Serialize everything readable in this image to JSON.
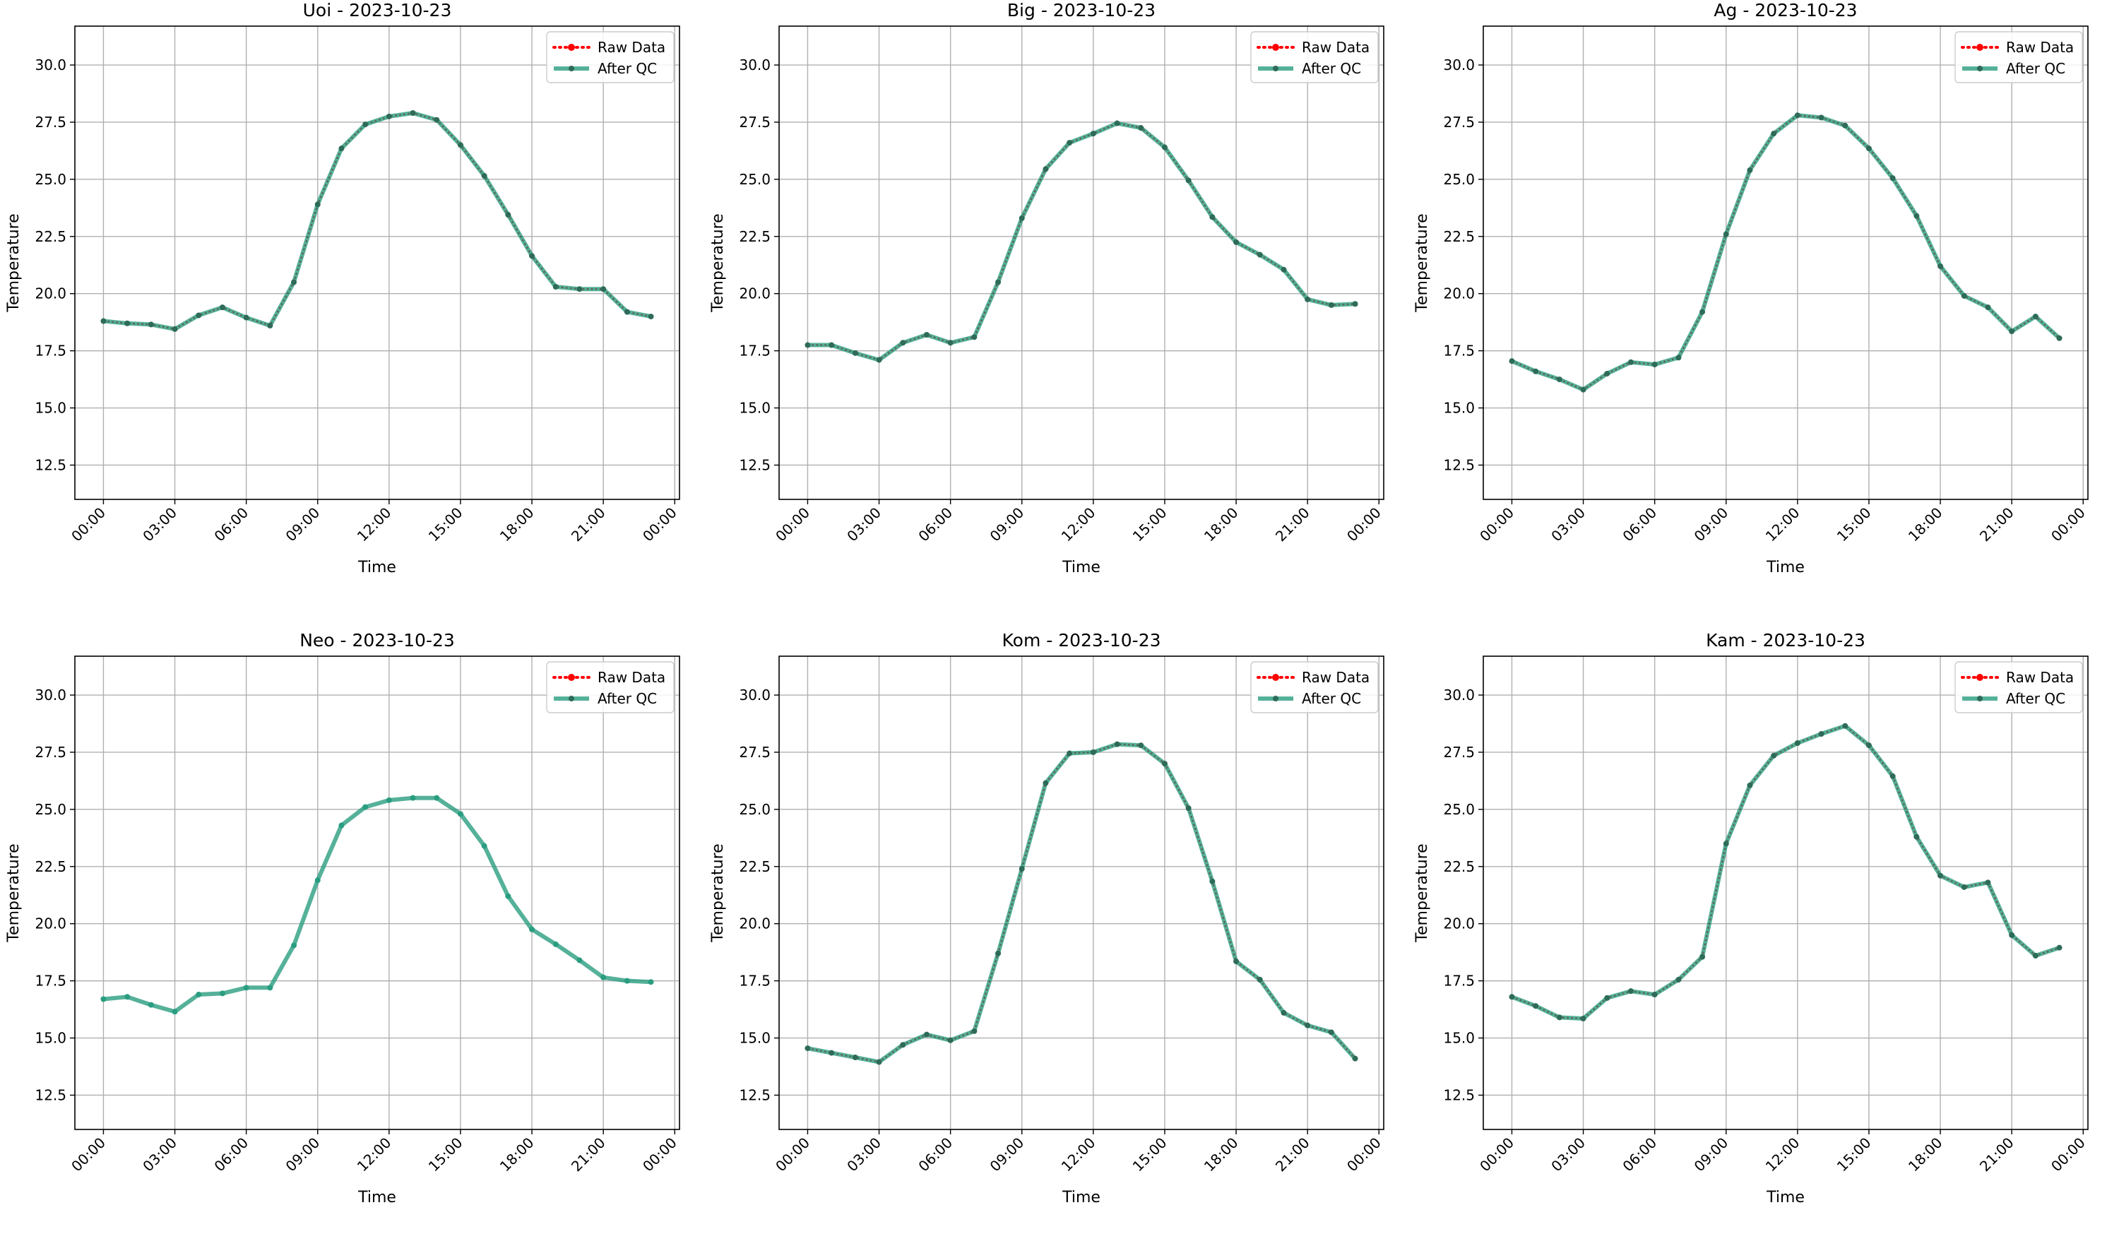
{
  "legend": {
    "raw_label": "Raw Data",
    "qc_label": "After QC"
  },
  "colors": {
    "raw": "#ff0000",
    "qc": "#2a9d80",
    "marker": "#2e6b58",
    "grid": "#b0b0b0",
    "axes": "#000000"
  },
  "chart_data": [
    {
      "type": "line",
      "title": "Uoi - 2023-10-23",
      "xlabel": "Time",
      "ylabel": "Temperature",
      "xlim": [
        "2023-10-22 22:48",
        "2023-10-24 00:12"
      ],
      "ylim": [
        11.0,
        31.7
      ],
      "x_ticks": [
        "00:00",
        "03:00",
        "06:00",
        "09:00",
        "12:00",
        "15:00",
        "18:00",
        "21:00",
        "00:00"
      ],
      "y_ticks": [
        "12.5",
        "15.0",
        "17.5",
        "20.0",
        "22.5",
        "25.0",
        "27.5",
        "30.0"
      ],
      "grid": true,
      "legend_position": "top-right",
      "x": [
        "00:00",
        "01:00",
        "02:00",
        "03:00",
        "04:00",
        "05:00",
        "06:00",
        "07:00",
        "08:00",
        "09:00",
        "10:00",
        "11:00",
        "12:00",
        "13:00",
        "14:00",
        "15:00",
        "16:00",
        "17:00",
        "18:00",
        "19:00",
        "20:00",
        "21:00",
        "22:00",
        "23:00"
      ],
      "series": [
        {
          "name": "Raw Data",
          "values": [
            18.8,
            18.7,
            18.65,
            18.45,
            19.05,
            19.4,
            18.95,
            18.6,
            20.5,
            23.9,
            26.35,
            27.4,
            27.75,
            27.9,
            27.6,
            26.5,
            25.15,
            23.45,
            21.65,
            20.3,
            20.2,
            20.2,
            19.2,
            19.0
          ]
        },
        {
          "name": "After QC",
          "values": [
            18.8,
            18.7,
            18.65,
            18.45,
            19.05,
            19.4,
            18.95,
            18.6,
            20.5,
            23.9,
            26.35,
            27.4,
            27.75,
            27.9,
            27.6,
            26.5,
            25.15,
            23.45,
            21.65,
            20.3,
            20.2,
            20.2,
            19.2,
            19.0
          ]
        }
      ]
    },
    {
      "type": "line",
      "title": "Big - 2023-10-23",
      "xlabel": "Time",
      "ylabel": "Temperature",
      "xlim": [
        "2023-10-22 22:48",
        "2023-10-24 00:12"
      ],
      "ylim": [
        11.0,
        31.7
      ],
      "x_ticks": [
        "00:00",
        "03:00",
        "06:00",
        "09:00",
        "12:00",
        "15:00",
        "18:00",
        "21:00",
        "00:00"
      ],
      "y_ticks": [
        "12.5",
        "15.0",
        "17.5",
        "20.0",
        "22.5",
        "25.0",
        "27.5",
        "30.0"
      ],
      "grid": true,
      "legend_position": "top-right",
      "x": [
        "00:00",
        "01:00",
        "02:00",
        "03:00",
        "04:00",
        "05:00",
        "06:00",
        "07:00",
        "08:00",
        "09:00",
        "10:00",
        "11:00",
        "12:00",
        "13:00",
        "14:00",
        "15:00",
        "16:00",
        "17:00",
        "18:00",
        "19:00",
        "20:00",
        "21:00",
        "22:00",
        "23:00"
      ],
      "series": [
        {
          "name": "Raw Data",
          "values": [
            17.75,
            17.75,
            17.4,
            17.1,
            17.85,
            18.2,
            17.85,
            18.1,
            20.5,
            23.3,
            25.45,
            26.6,
            27.0,
            27.45,
            27.25,
            26.4,
            24.95,
            23.35,
            22.25,
            21.7,
            21.05,
            19.75,
            19.5,
            19.55
          ]
        },
        {
          "name": "After QC",
          "values": [
            17.75,
            17.75,
            17.4,
            17.1,
            17.85,
            18.2,
            17.85,
            18.1,
            20.5,
            23.3,
            25.45,
            26.6,
            27.0,
            27.45,
            27.25,
            26.4,
            24.95,
            23.35,
            22.25,
            21.7,
            21.05,
            19.75,
            19.5,
            19.55
          ]
        }
      ]
    },
    {
      "type": "line",
      "title": "Ag - 2023-10-23",
      "xlabel": "Time",
      "ylabel": "Temperature",
      "xlim": [
        "2023-10-22 22:48",
        "2023-10-24 00:12"
      ],
      "ylim": [
        11.0,
        31.7
      ],
      "x_ticks": [
        "00:00",
        "03:00",
        "06:00",
        "09:00",
        "12:00",
        "15:00",
        "18:00",
        "21:00",
        "00:00"
      ],
      "y_ticks": [
        "12.5",
        "15.0",
        "17.5",
        "20.0",
        "22.5",
        "25.0",
        "27.5",
        "30.0"
      ],
      "grid": true,
      "legend_position": "top-right",
      "x": [
        "00:00",
        "01:00",
        "02:00",
        "03:00",
        "04:00",
        "05:00",
        "06:00",
        "07:00",
        "08:00",
        "09:00",
        "10:00",
        "11:00",
        "12:00",
        "13:00",
        "14:00",
        "15:00",
        "16:00",
        "17:00",
        "18:00",
        "19:00",
        "20:00",
        "21:00",
        "22:00",
        "23:00"
      ],
      "series": [
        {
          "name": "Raw Data",
          "values": [
            17.05,
            16.6,
            16.25,
            15.8,
            16.5,
            17.0,
            16.9,
            17.2,
            19.2,
            22.6,
            25.4,
            27.0,
            27.8,
            27.7,
            27.35,
            26.35,
            25.05,
            23.4,
            21.2,
            19.9,
            19.4,
            18.35,
            19.0,
            18.05
          ]
        },
        {
          "name": "After QC",
          "values": [
            17.05,
            16.6,
            16.25,
            15.8,
            16.5,
            17.0,
            16.9,
            17.2,
            19.2,
            22.6,
            25.4,
            27.0,
            27.8,
            27.7,
            27.35,
            26.35,
            25.05,
            23.4,
            21.2,
            19.9,
            19.4,
            18.35,
            19.0,
            18.05
          ]
        }
      ]
    },
    {
      "type": "line",
      "title": "Neo - 2023-10-23",
      "xlabel": "Time",
      "ylabel": "Temperature",
      "xlim": [
        "2023-10-22 22:48",
        "2023-10-24 00:12"
      ],
      "ylim": [
        11.0,
        31.7
      ],
      "x_ticks": [
        "00:00",
        "03:00",
        "06:00",
        "09:00",
        "12:00",
        "15:00",
        "18:00",
        "21:00",
        "00:00"
      ],
      "y_ticks": [
        "12.5",
        "15.0",
        "17.5",
        "20.0",
        "22.5",
        "25.0",
        "27.5",
        "30.0"
      ],
      "grid": true,
      "legend_position": "top-right",
      "x": [
        "00:00",
        "01:00",
        "02:00",
        "03:00",
        "04:00",
        "05:00",
        "06:00",
        "07:00",
        "08:00",
        "09:00",
        "10:00",
        "11:00",
        "12:00",
        "13:00",
        "14:00",
        "15:00",
        "16:00",
        "17:00",
        "18:00",
        "19:00",
        "20:00",
        "21:00",
        "22:00",
        "23:00"
      ],
      "series": [
        {
          "name": "Raw Data",
          "values": [
            16.7,
            16.8,
            16.45,
            16.15,
            16.9,
            16.95,
            17.2,
            17.2,
            19.05,
            21.9,
            24.3,
            25.1,
            25.4,
            25.5,
            25.5,
            24.8,
            23.4,
            21.2,
            19.75,
            19.1,
            18.4,
            17.65,
            17.5,
            17.45
          ]
        },
        {
          "name": "After QC",
          "values": [
            16.7,
            16.8,
            16.45,
            16.15,
            16.9,
            16.95,
            17.2,
            17.2,
            19.05,
            21.9,
            24.3,
            25.1,
            25.4,
            25.5,
            25.5,
            24.8,
            23.4,
            21.2,
            19.75,
            19.1,
            18.4,
            17.65,
            17.5,
            17.45
          ]
        }
      ]
    },
    {
      "type": "line",
      "title": "Kom - 2023-10-23",
      "xlabel": "Time",
      "ylabel": "Temperature",
      "xlim": [
        "2023-10-22 22:48",
        "2023-10-24 00:12"
      ],
      "ylim": [
        11.0,
        31.7
      ],
      "x_ticks": [
        "00:00",
        "03:00",
        "06:00",
        "09:00",
        "12:00",
        "15:00",
        "18:00",
        "21:00",
        "00:00"
      ],
      "y_ticks": [
        "12.5",
        "15.0",
        "17.5",
        "20.0",
        "22.5",
        "25.0",
        "27.5",
        "30.0"
      ],
      "grid": true,
      "legend_position": "top-right",
      "x": [
        "00:00",
        "01:00",
        "02:00",
        "03:00",
        "04:00",
        "05:00",
        "06:00",
        "07:00",
        "08:00",
        "09:00",
        "10:00",
        "11:00",
        "12:00",
        "13:00",
        "14:00",
        "15:00",
        "16:00",
        "17:00",
        "18:00",
        "19:00",
        "20:00",
        "21:00",
        "22:00",
        "23:00"
      ],
      "series": [
        {
          "name": "Raw Data",
          "values": [
            14.55,
            14.35,
            14.15,
            13.95,
            14.7,
            15.15,
            14.9,
            15.3,
            18.7,
            22.4,
            26.15,
            27.45,
            27.5,
            27.85,
            27.8,
            27.0,
            25.05,
            21.85,
            18.35,
            17.55,
            16.1,
            15.55,
            15.25,
            14.1
          ]
        },
        {
          "name": "After QC",
          "values": [
            14.55,
            14.35,
            14.15,
            13.95,
            14.7,
            15.15,
            14.9,
            15.3,
            18.7,
            22.4,
            26.15,
            27.45,
            27.5,
            27.85,
            27.8,
            27.0,
            25.05,
            21.85,
            18.35,
            17.55,
            16.1,
            15.55,
            15.25,
            14.1
          ]
        }
      ]
    },
    {
      "type": "line",
      "title": "Kam - 2023-10-23",
      "xlabel": "Time",
      "ylabel": "Temperature",
      "xlim": [
        "2023-10-22 22:48",
        "2023-10-24 00:12"
      ],
      "ylim": [
        11.0,
        31.7
      ],
      "x_ticks": [
        "00:00",
        "03:00",
        "06:00",
        "09:00",
        "12:00",
        "15:00",
        "18:00",
        "21:00",
        "00:00"
      ],
      "y_ticks": [
        "12.5",
        "15.0",
        "17.5",
        "20.0",
        "22.5",
        "25.0",
        "27.5",
        "30.0"
      ],
      "grid": true,
      "legend_position": "top-right",
      "x": [
        "00:00",
        "01:00",
        "02:00",
        "03:00",
        "04:00",
        "05:00",
        "06:00",
        "07:00",
        "08:00",
        "09:00",
        "10:00",
        "11:00",
        "12:00",
        "13:00",
        "14:00",
        "15:00",
        "16:00",
        "17:00",
        "18:00",
        "19:00",
        "20:00",
        "21:00",
        "22:00",
        "23:00"
      ],
      "series": [
        {
          "name": "Raw Data",
          "values": [
            16.8,
            16.4,
            15.9,
            15.85,
            16.75,
            17.05,
            16.9,
            17.55,
            18.55,
            23.5,
            26.05,
            27.35,
            27.9,
            28.3,
            28.65,
            27.8,
            26.45,
            23.8,
            22.1,
            21.6,
            21.8,
            19.5,
            18.6,
            18.95
          ]
        },
        {
          "name": "After QC",
          "values": [
            16.8,
            16.4,
            15.9,
            15.85,
            16.75,
            17.05,
            16.9,
            17.55,
            18.55,
            23.5,
            26.05,
            27.35,
            27.9,
            28.3,
            28.65,
            27.8,
            26.45,
            23.8,
            22.1,
            21.6,
            21.8,
            19.5,
            18.6,
            18.95
          ]
        }
      ]
    }
  ]
}
